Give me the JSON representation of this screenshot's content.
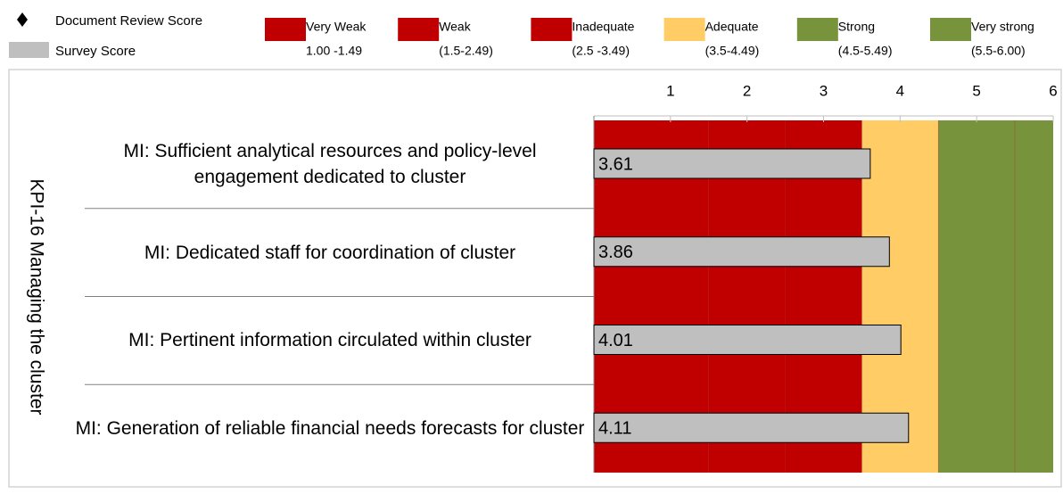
{
  "chart_data": {
    "type": "bar",
    "orientation": "horizontal",
    "group_label": "KPI-16 Managing the cluster",
    "categories": [
      "MI: Sufficient analytical resources and policy-level engagement dedicated to cluster",
      "MI: Dedicated staff for coordination of cluster",
      "MI: Pertinent information circulated within cluster",
      "MI: Generation of reliable financial needs forecasts for cluster"
    ],
    "series": [
      {
        "name": "Survey Score",
        "color": "#bfbfbf",
        "values": [
          3.61,
          3.86,
          4.01,
          4.11
        ]
      }
    ],
    "markers": [
      {
        "name": "Document Review Score",
        "marker": "diamond",
        "color": "#000000"
      }
    ],
    "bands": [
      {
        "name": "Very Weak",
        "range": "1.00 -1.49",
        "from": 0,
        "to": 1.5,
        "color": "#c00000"
      },
      {
        "name": "Weak",
        "range": "(1.5-2.49)",
        "from": 1.5,
        "to": 2.5,
        "color": "#c00000"
      },
      {
        "name": "Inadequate",
        "range": "(2.5 -3.49)",
        "from": 2.5,
        "to": 3.5,
        "color": "#c00000"
      },
      {
        "name": "Adequate",
        "range": "(3.5-4.49)",
        "from": 3.5,
        "to": 4.5,
        "color": "#ffcc66"
      },
      {
        "name": "Strong",
        "range": "(4.5-5.49)",
        "from": 4.5,
        "to": 5.5,
        "color": "#77933c"
      },
      {
        "name": "Very strong",
        "range": "(5.5-6.00)",
        "from": 5.5,
        "to": 6,
        "color": "#77933c"
      }
    ],
    "xlim": [
      0,
      6
    ],
    "xticks": [
      1,
      2,
      3,
      4,
      5,
      6
    ]
  }
}
